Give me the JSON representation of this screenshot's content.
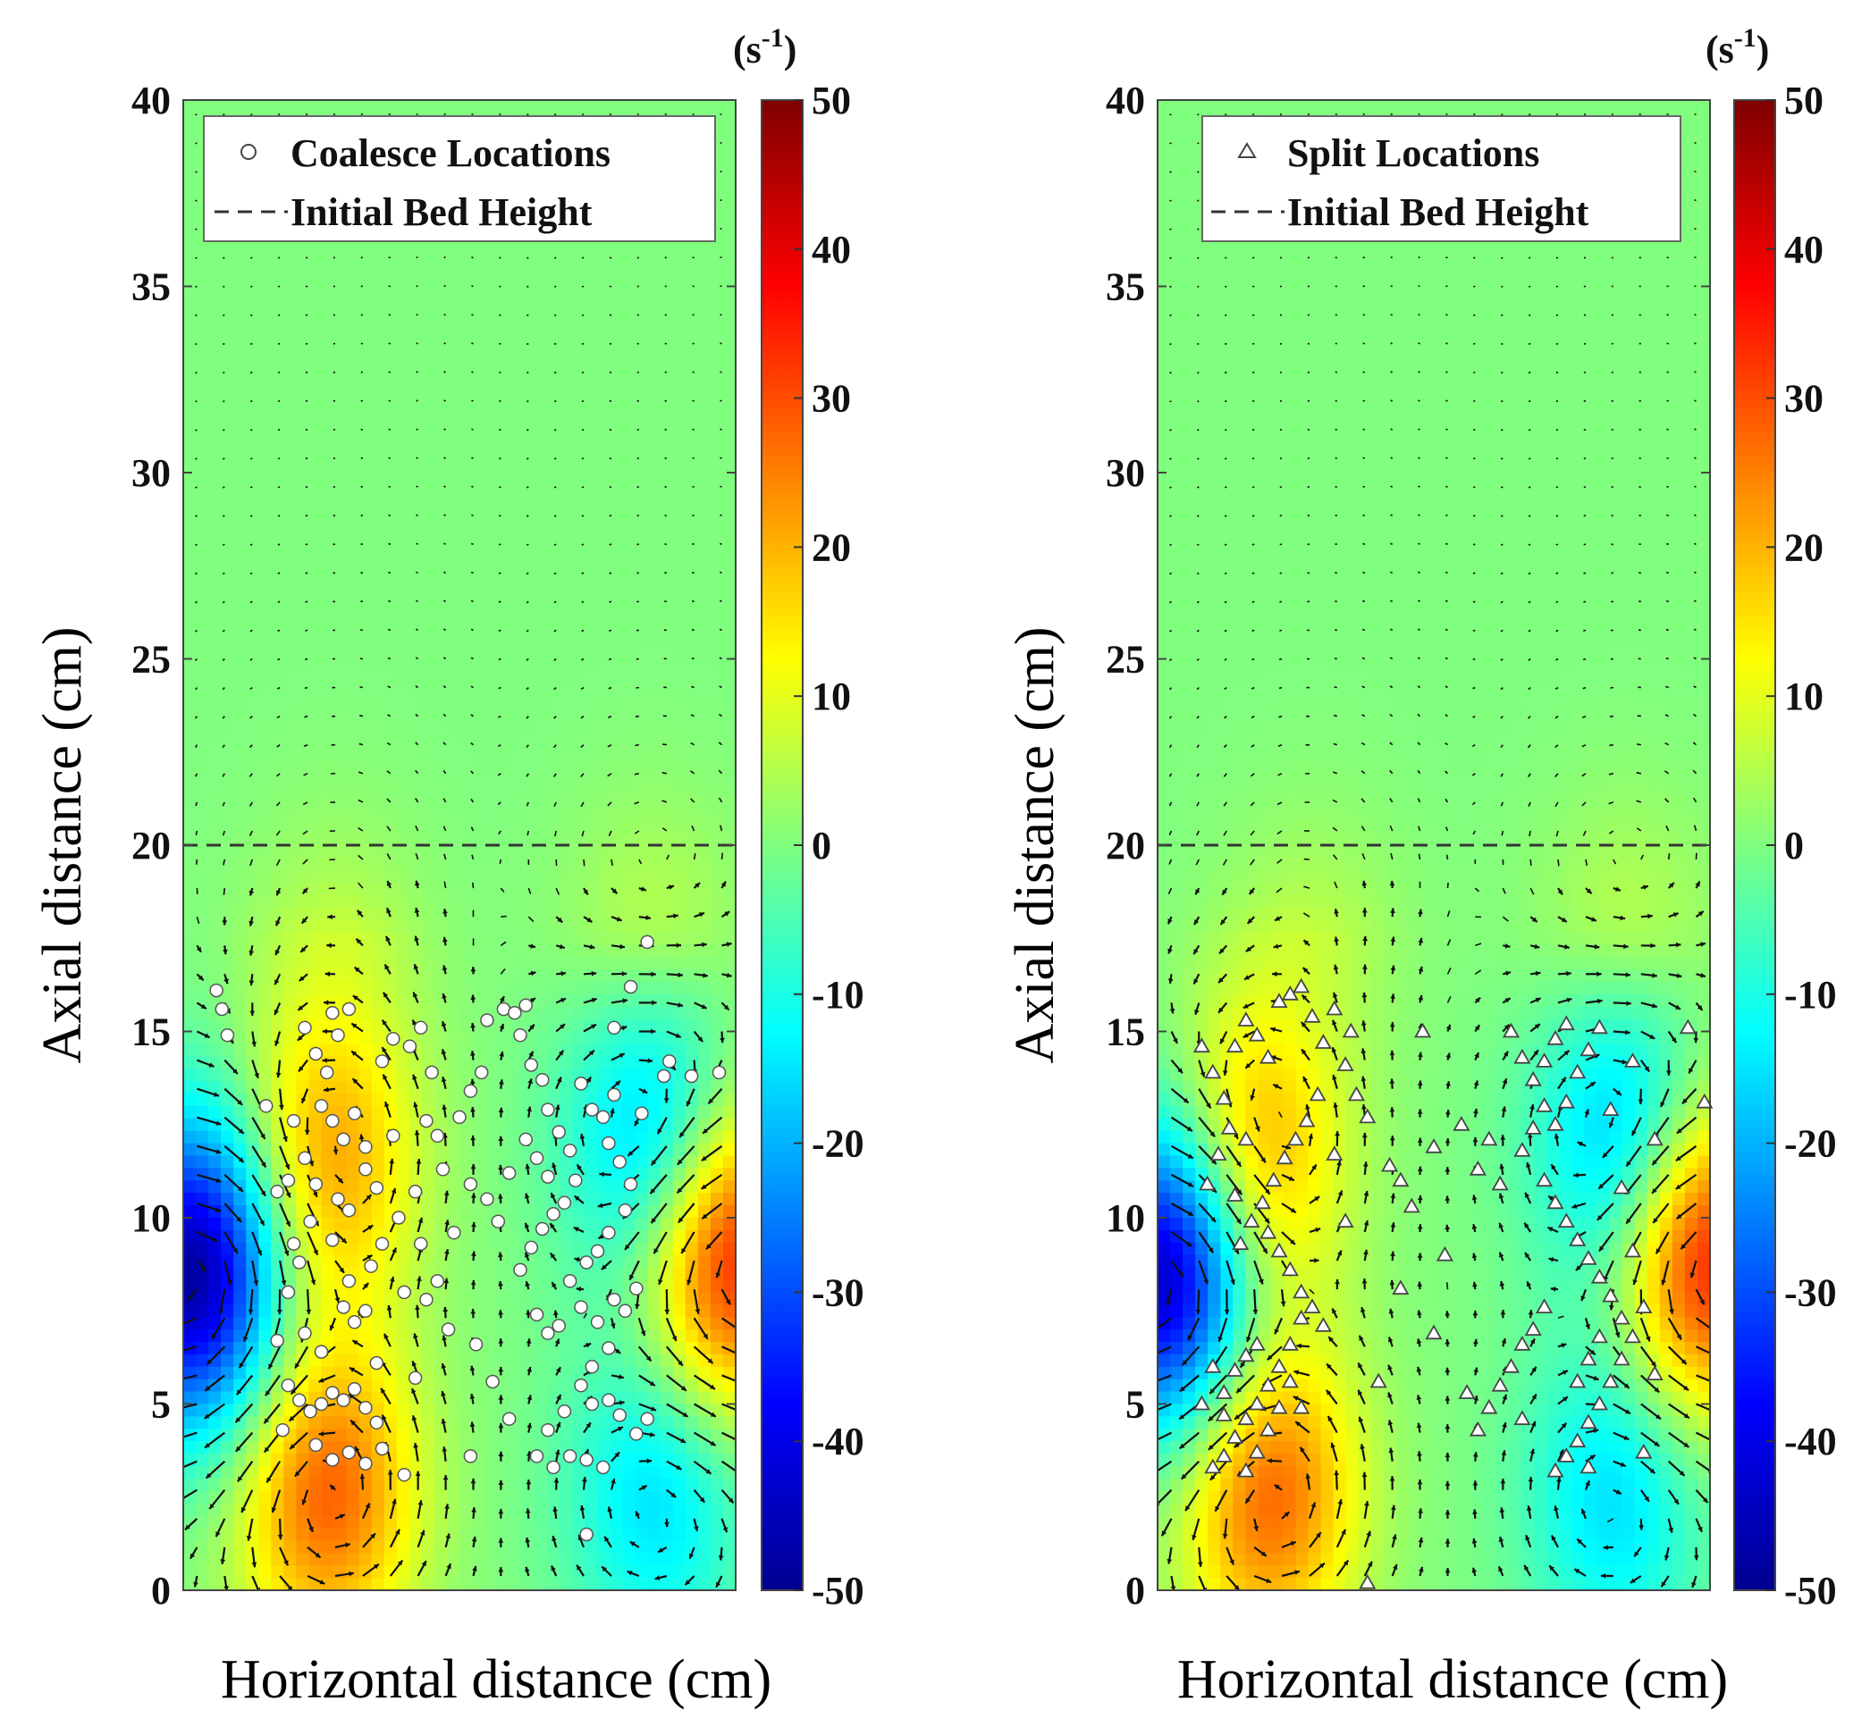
{
  "chart_data": [
    {
      "type": "contour-quiver",
      "ylabel": "Axial distance (cm)",
      "xlabel": "Horizontal distance (cm)",
      "ylim": [
        0,
        40
      ],
      "yticks": [
        0,
        5,
        10,
        15,
        20,
        25,
        30,
        35,
        40
      ],
      "colorbar": {
        "unit": "(s-1)",
        "unit_base": "(s",
        "unit_exp": "-1",
        "unit_close": ")",
        "range": [
          -50,
          50
        ],
        "ticks": [
          50,
          40,
          30,
          20,
          10,
          0,
          -10,
          -20,
          -30,
          -40,
          -50
        ],
        "colormap": "jet"
      },
      "legend": {
        "marker_label": "Coalesce Locations",
        "marker": "circle",
        "line_label": "Initial Bed Height"
      },
      "initial_bed_height": 20,
      "marker_fill": "#ffffff",
      "vortex_field": [
        {
          "x": 0.26,
          "y": 11.5,
          "strength": 22
        },
        {
          "x": 0.26,
          "y": 2.6,
          "strength": 28
        },
        {
          "x": 0.86,
          "y": 12.0,
          "strength": -22
        },
        {
          "x": 0.86,
          "y": 2.6,
          "strength": -16
        },
        {
          "x": 0.02,
          "y": 8.5,
          "strength": -48
        },
        {
          "x": 0.99,
          "y": 9.0,
          "strength": 38
        },
        {
          "x": 0.28,
          "y": 19.0,
          "strength": 6
        },
        {
          "x": 0.85,
          "y": 19.0,
          "strength": 8
        }
      ],
      "points": [
        [
          0.06,
          16.1
        ],
        [
          0.07,
          15.6
        ],
        [
          0.08,
          14.9
        ],
        [
          0.15,
          13.0
        ],
        [
          0.2,
          12.6
        ],
        [
          0.22,
          15.1
        ],
        [
          0.24,
          14.4
        ],
        [
          0.26,
          13.9
        ],
        [
          0.27,
          15.5
        ],
        [
          0.28,
          14.9
        ],
        [
          0.3,
          15.6
        ],
        [
          0.25,
          13.0
        ],
        [
          0.27,
          12.6
        ],
        [
          0.29,
          12.1
        ],
        [
          0.31,
          12.8
        ],
        [
          0.33,
          11.9
        ],
        [
          0.22,
          11.6
        ],
        [
          0.19,
          11.0
        ],
        [
          0.17,
          10.7
        ],
        [
          0.24,
          10.9
        ],
        [
          0.28,
          10.5
        ],
        [
          0.3,
          10.2
        ],
        [
          0.33,
          11.3
        ],
        [
          0.35,
          10.8
        ],
        [
          0.38,
          12.2
        ],
        [
          0.36,
          14.2
        ],
        [
          0.38,
          14.8
        ],
        [
          0.41,
          14.6
        ],
        [
          0.43,
          15.1
        ],
        [
          0.45,
          13.9
        ],
        [
          0.44,
          12.6
        ],
        [
          0.47,
          11.3
        ],
        [
          0.42,
          10.7
        ],
        [
          0.39,
          10.0
        ],
        [
          0.36,
          9.3
        ],
        [
          0.34,
          8.7
        ],
        [
          0.3,
          8.3
        ],
        [
          0.29,
          7.6
        ],
        [
          0.31,
          7.2
        ],
        [
          0.33,
          7.5
        ],
        [
          0.27,
          9.4
        ],
        [
          0.23,
          9.9
        ],
        [
          0.21,
          8.8
        ],
        [
          0.19,
          8.0
        ],
        [
          0.2,
          9.3
        ],
        [
          0.17,
          6.7
        ],
        [
          0.19,
          5.5
        ],
        [
          0.21,
          5.1
        ],
        [
          0.23,
          4.8
        ],
        [
          0.25,
          5.0
        ],
        [
          0.27,
          5.3
        ],
        [
          0.29,
          5.1
        ],
        [
          0.31,
          5.4
        ],
        [
          0.33,
          4.9
        ],
        [
          0.35,
          4.5
        ],
        [
          0.24,
          3.9
        ],
        [
          0.27,
          3.5
        ],
        [
          0.3,
          3.7
        ],
        [
          0.33,
          3.4
        ],
        [
          0.18,
          4.3
        ],
        [
          0.42,
          5.7
        ],
        [
          0.44,
          7.8
        ],
        [
          0.46,
          8.3
        ],
        [
          0.49,
          9.6
        ],
        [
          0.5,
          12.7
        ],
        [
          0.52,
          13.4
        ],
        [
          0.54,
          13.9
        ],
        [
          0.55,
          15.3
        ],
        [
          0.58,
          15.6
        ],
        [
          0.6,
          15.5
        ],
        [
          0.62,
          15.7
        ],
        [
          0.61,
          14.9
        ],
        [
          0.63,
          14.1
        ],
        [
          0.65,
          13.7
        ],
        [
          0.66,
          12.9
        ],
        [
          0.68,
          12.3
        ],
        [
          0.7,
          11.8
        ],
        [
          0.71,
          11.0
        ],
        [
          0.69,
          10.4
        ],
        [
          0.67,
          10.1
        ],
        [
          0.65,
          9.7
        ],
        [
          0.63,
          9.2
        ],
        [
          0.61,
          8.6
        ],
        [
          0.62,
          12.1
        ],
        [
          0.64,
          11.6
        ],
        [
          0.66,
          11.1
        ],
        [
          0.72,
          13.6
        ],
        [
          0.74,
          12.9
        ],
        [
          0.76,
          12.7
        ],
        [
          0.78,
          13.3
        ],
        [
          0.77,
          12.0
        ],
        [
          0.79,
          11.5
        ],
        [
          0.81,
          10.9
        ],
        [
          0.8,
          10.2
        ],
        [
          0.77,
          9.6
        ],
        [
          0.75,
          9.1
        ],
        [
          0.73,
          8.8
        ],
        [
          0.7,
          8.3
        ],
        [
          0.72,
          7.6
        ],
        [
          0.75,
          7.2
        ],
        [
          0.78,
          7.8
        ],
        [
          0.8,
          7.5
        ],
        [
          0.82,
          8.1
        ],
        [
          0.77,
          6.5
        ],
        [
          0.74,
          6.0
        ],
        [
          0.72,
          5.5
        ],
        [
          0.74,
          5.0
        ],
        [
          0.77,
          5.1
        ],
        [
          0.79,
          4.7
        ],
        [
          0.82,
          4.2
        ],
        [
          0.84,
          4.6
        ],
        [
          0.69,
          4.8
        ],
        [
          0.66,
          4.3
        ],
        [
          0.64,
          3.6
        ],
        [
          0.67,
          3.3
        ],
        [
          0.7,
          3.6
        ],
        [
          0.73,
          3.5
        ],
        [
          0.76,
          3.3
        ],
        [
          0.66,
          6.9
        ],
        [
          0.68,
          7.1
        ],
        [
          0.64,
          7.4
        ],
        [
          0.83,
          12.8
        ],
        [
          0.78,
          15.1
        ],
        [
          0.81,
          16.2
        ],
        [
          0.84,
          17.4
        ],
        [
          0.87,
          13.8
        ],
        [
          0.88,
          14.2
        ],
        [
          0.92,
          13.8
        ],
        [
          0.97,
          13.9
        ],
        [
          0.73,
          1.5
        ],
        [
          0.48,
          7.0
        ],
        [
          0.53,
          6.6
        ],
        [
          0.56,
          5.6
        ],
        [
          0.59,
          4.6
        ],
        [
          0.52,
          3.6
        ],
        [
          0.4,
          3.1
        ],
        [
          0.36,
          3.8
        ],
        [
          0.57,
          9.9
        ],
        [
          0.55,
          10.5
        ],
        [
          0.59,
          11.2
        ],
        [
          0.52,
          10.9
        ],
        [
          0.46,
          12.2
        ],
        [
          0.4,
          8.0
        ],
        [
          0.43,
          9.3
        ],
        [
          0.25,
          6.4
        ],
        [
          0.22,
          6.9
        ],
        [
          0.35,
          6.1
        ]
      ]
    },
    {
      "type": "contour-quiver",
      "ylabel": "Axial distance (cm)",
      "xlabel": "Horizontal distance (cm)",
      "ylim": [
        0,
        40
      ],
      "yticks": [
        0,
        5,
        10,
        15,
        20,
        25,
        30,
        35,
        40
      ],
      "colorbar": {
        "unit": "(s-1)",
        "unit_base": "(s",
        "unit_exp": "-1",
        "unit_close": ")",
        "range": [
          -50,
          50
        ],
        "ticks": [
          50,
          40,
          30,
          20,
          10,
          0,
          -10,
          -20,
          -30,
          -40,
          -50
        ],
        "colormap": "jet"
      },
      "legend": {
        "marker_label": "Split Locations",
        "marker": "triangle",
        "line_label": "Initial Bed Height"
      },
      "initial_bed_height": 20,
      "marker_fill": "#ffffff",
      "vortex_field": [
        {
          "x": 0.17,
          "y": 11.5,
          "strength": 24
        },
        {
          "x": 0.2,
          "y": 2.6,
          "strength": 28
        },
        {
          "x": 0.85,
          "y": 12.0,
          "strength": -22
        },
        {
          "x": 0.83,
          "y": 2.6,
          "strength": -16
        },
        {
          "x": 0.02,
          "y": 8.5,
          "strength": -48
        },
        {
          "x": 0.99,
          "y": 9.0,
          "strength": 38
        },
        {
          "x": 0.28,
          "y": 19.0,
          "strength": 6
        },
        {
          "x": 0.85,
          "y": 19.0,
          "strength": 8
        }
      ],
      "points": [
        [
          0.08,
          14.6
        ],
        [
          0.1,
          13.9
        ],
        [
          0.12,
          13.2
        ],
        [
          0.14,
          14.6
        ],
        [
          0.16,
          15.3
        ],
        [
          0.18,
          14.9
        ],
        [
          0.2,
          14.3
        ],
        [
          0.22,
          15.8
        ],
        [
          0.24,
          16.0
        ],
        [
          0.26,
          16.2
        ],
        [
          0.28,
          15.4
        ],
        [
          0.3,
          14.7
        ],
        [
          0.32,
          15.6
        ],
        [
          0.34,
          14.1
        ],
        [
          0.36,
          13.3
        ],
        [
          0.38,
          12.7
        ],
        [
          0.35,
          15.0
        ],
        [
          0.29,
          13.3
        ],
        [
          0.27,
          12.6
        ],
        [
          0.25,
          12.1
        ],
        [
          0.23,
          11.6
        ],
        [
          0.21,
          11.0
        ],
        [
          0.19,
          10.4
        ],
        [
          0.17,
          9.9
        ],
        [
          0.15,
          9.3
        ],
        [
          0.13,
          12.4
        ],
        [
          0.11,
          11.7
        ],
        [
          0.09,
          10.9
        ],
        [
          0.14,
          10.6
        ],
        [
          0.16,
          12.1
        ],
        [
          0.2,
          9.6
        ],
        [
          0.22,
          9.1
        ],
        [
          0.24,
          8.6
        ],
        [
          0.26,
          8.0
        ],
        [
          0.28,
          7.6
        ],
        [
          0.3,
          7.1
        ],
        [
          0.26,
          7.3
        ],
        [
          0.24,
          6.6
        ],
        [
          0.22,
          6.0
        ],
        [
          0.2,
          5.5
        ],
        [
          0.18,
          5.0
        ],
        [
          0.16,
          4.6
        ],
        [
          0.14,
          4.1
        ],
        [
          0.12,
          3.6
        ],
        [
          0.1,
          3.3
        ],
        [
          0.12,
          5.3
        ],
        [
          0.14,
          5.9
        ],
        [
          0.16,
          6.3
        ],
        [
          0.18,
          6.6
        ],
        [
          0.2,
          4.3
        ],
        [
          0.22,
          4.9
        ],
        [
          0.18,
          3.7
        ],
        [
          0.16,
          3.2
        ],
        [
          0.08,
          5.0
        ],
        [
          0.1,
          6.0
        ],
        [
          0.12,
          4.7
        ],
        [
          0.24,
          5.6
        ],
        [
          0.26,
          4.9
        ],
        [
          0.4,
          5.6
        ],
        [
          0.42,
          11.4
        ],
        [
          0.44,
          11.0
        ],
        [
          0.46,
          10.3
        ],
        [
          0.5,
          11.9
        ],
        [
          0.55,
          12.5
        ],
        [
          0.58,
          11.3
        ],
        [
          0.6,
          12.1
        ],
        [
          0.62,
          10.9
        ],
        [
          0.64,
          15.0
        ],
        [
          0.66,
          14.3
        ],
        [
          0.68,
          13.7
        ],
        [
          0.7,
          13.0
        ],
        [
          0.72,
          12.5
        ],
        [
          0.74,
          13.1
        ],
        [
          0.76,
          13.9
        ],
        [
          0.78,
          14.5
        ],
        [
          0.8,
          15.1
        ],
        [
          0.74,
          15.2
        ],
        [
          0.72,
          14.8
        ],
        [
          0.7,
          14.2
        ],
        [
          0.68,
          12.4
        ],
        [
          0.66,
          11.8
        ],
        [
          0.7,
          11.0
        ],
        [
          0.72,
          10.4
        ],
        [
          0.74,
          9.9
        ],
        [
          0.76,
          9.4
        ],
        [
          0.78,
          8.9
        ],
        [
          0.8,
          8.4
        ],
        [
          0.82,
          7.9
        ],
        [
          0.84,
          7.3
        ],
        [
          0.86,
          6.8
        ],
        [
          0.84,
          6.2
        ],
        [
          0.82,
          5.6
        ],
        [
          0.8,
          5.0
        ],
        [
          0.78,
          4.5
        ],
        [
          0.76,
          4.0
        ],
        [
          0.74,
          3.6
        ],
        [
          0.72,
          3.2
        ],
        [
          0.76,
          5.6
        ],
        [
          0.78,
          6.2
        ],
        [
          0.8,
          6.8
        ],
        [
          0.7,
          7.6
        ],
        [
          0.68,
          7.0
        ],
        [
          0.66,
          6.6
        ],
        [
          0.64,
          6.0
        ],
        [
          0.62,
          5.5
        ],
        [
          0.6,
          4.9
        ],
        [
          0.58,
          4.3
        ],
        [
          0.82,
          12.9
        ],
        [
          0.84,
          10.8
        ],
        [
          0.86,
          9.1
        ],
        [
          0.88,
          7.6
        ],
        [
          0.9,
          5.8
        ],
        [
          0.96,
          15.1
        ],
        [
          0.99,
          13.1
        ],
        [
          0.38,
          0.2
        ],
        [
          0.5,
          6.9
        ],
        [
          0.56,
          5.3
        ],
        [
          0.52,
          9.0
        ],
        [
          0.48,
          15.0
        ],
        [
          0.44,
          8.1
        ],
        [
          0.34,
          9.9
        ],
        [
          0.32,
          11.7
        ],
        [
          0.86,
          14.2
        ],
        [
          0.9,
          12.1
        ],
        [
          0.78,
          3.3
        ],
        [
          0.66,
          4.6
        ],
        [
          0.88,
          3.7
        ]
      ]
    }
  ]
}
